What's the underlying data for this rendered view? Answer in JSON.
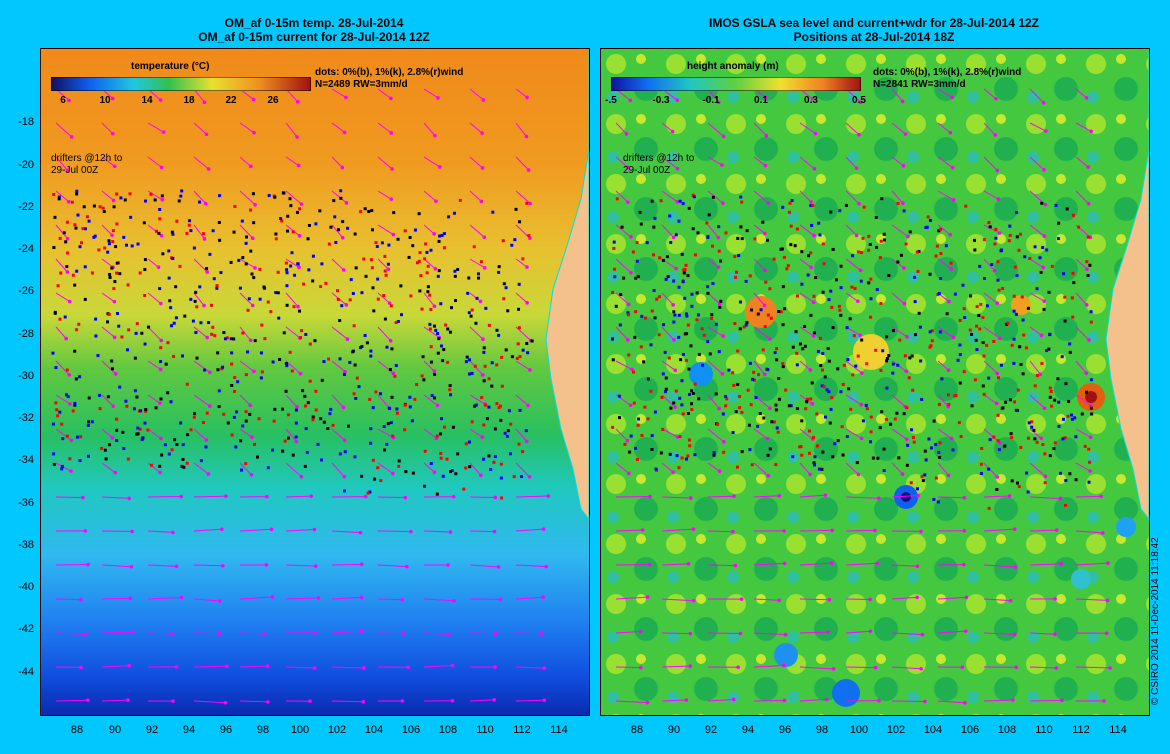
{
  "left": {
    "title_line1": "OM_af 0-15m temp. 28-Jul-2014",
    "title_line2": "OM_af 0-15m current for 28-Jul-2014 12Z",
    "colorbar_title": "temperature (°C)",
    "colorbar_ticks": [
      "6",
      "10",
      "14",
      "18",
      "22",
      "26"
    ],
    "legend_line1": "dots: 0%(b), 1%(k), 2.8%(r)wind",
    "legend_line2": "N=2489 RW=3mm/d",
    "drifters_line1": "drifters @12h to",
    "drifters_line2": "29-Jul 00Z"
  },
  "right": {
    "title_line1": "IMOS GSLA sea level and current+wdr for 28-Jul-2014 12Z",
    "title_line2": "Positions at 28-Jul-2014 18Z",
    "colorbar_title": "height anomaly (m)",
    "colorbar_ticks": [
      "-.5",
      "-0.3",
      "-0.1",
      "0.1",
      "0.3",
      "0.5"
    ],
    "legend_line1": "dots: 0%(b), 1%(k), 2.8%(r)wind",
    "legend_line2": "N=2841 RW=3mm/d",
    "drifters_line1": "drifters @12h to",
    "drifters_line2": "29-Jul 00Z"
  },
  "y_axis_labels": [
    "-18",
    "-20",
    "-22",
    "-24",
    "-26",
    "-28",
    "-30",
    "-32",
    "-34",
    "-36",
    "-38",
    "-40",
    "-42",
    "-44"
  ],
  "x_axis_labels": [
    "88",
    "90",
    "92",
    "94",
    "96",
    "98",
    "100",
    "102",
    "104",
    "106",
    "108",
    "110",
    "112",
    "114"
  ],
  "credit": "© CSIRO 2014   11-Dec-2014 11:18:42",
  "colors": {
    "background": "#00c8ff",
    "land": "#f4c08c",
    "arrow": "#ff00ff",
    "drifter_b": "#0000ff",
    "drifter_k": "#000000",
    "drifter_r": "#ff0000"
  }
}
